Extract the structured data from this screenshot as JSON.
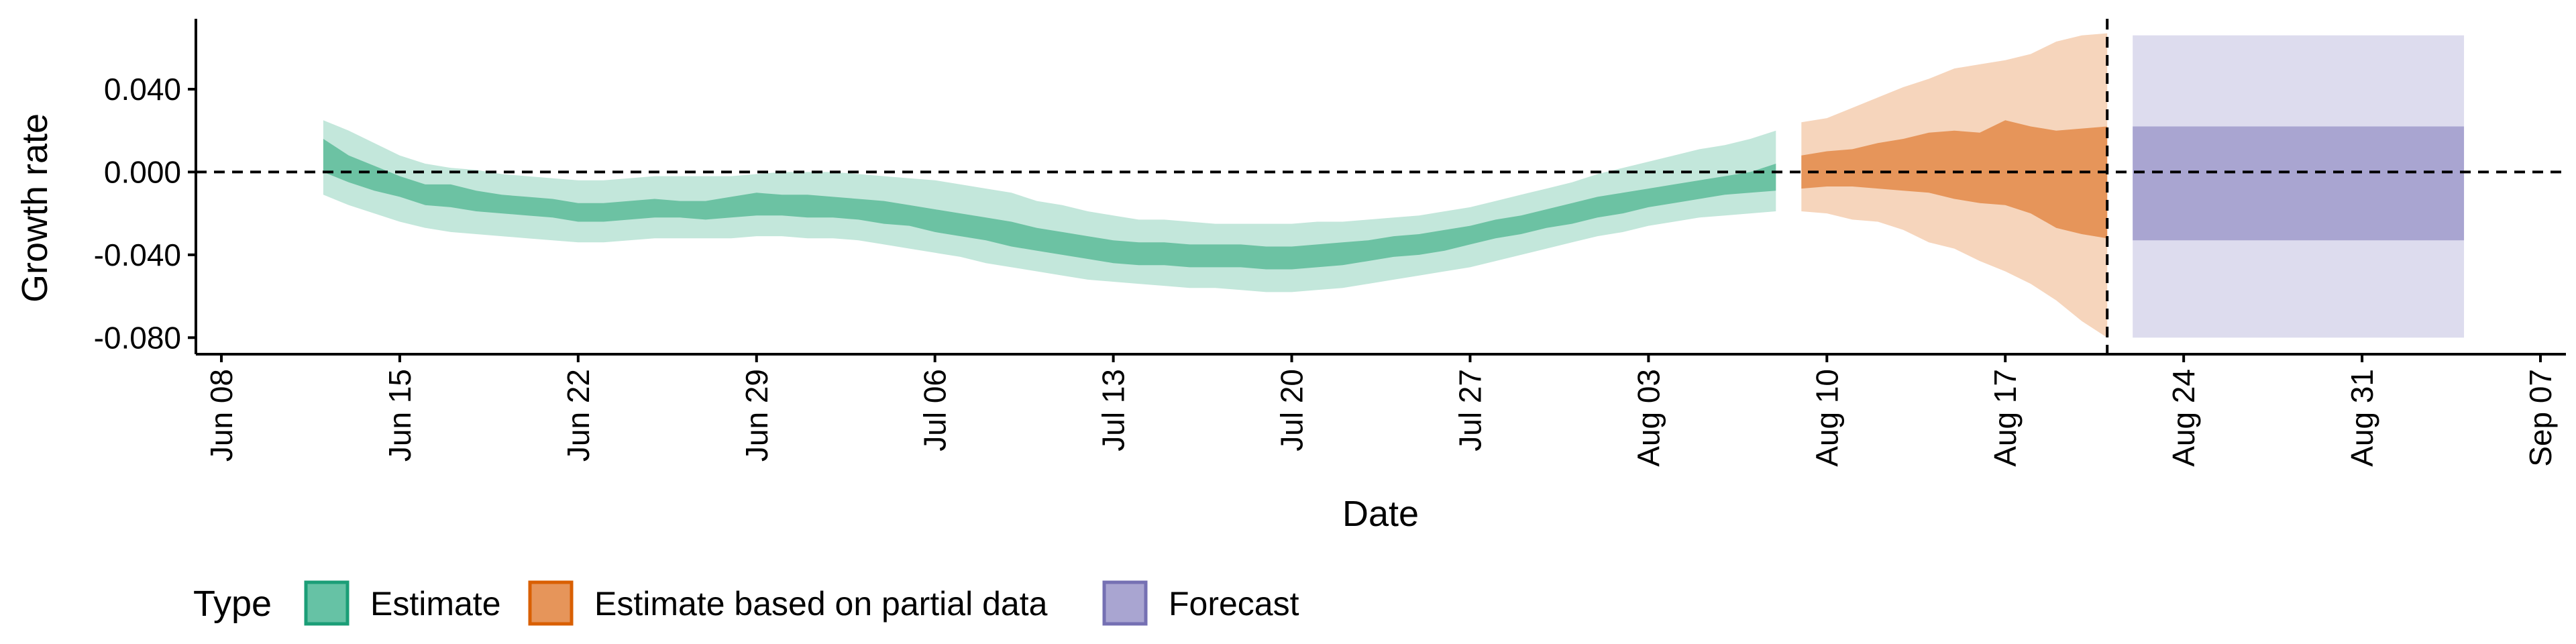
{
  "chart_data": {
    "type": "area",
    "xlabel": "Date",
    "ylabel": "Growth rate",
    "x_range": [
      "2021-06-07",
      "2021-09-08"
    ],
    "ylim": [
      -0.088,
      0.074
    ],
    "x_ticks": [
      {
        "date": "2021-06-08",
        "label": "Jun 08"
      },
      {
        "date": "2021-06-15",
        "label": "Jun 15"
      },
      {
        "date": "2021-06-22",
        "label": "Jun 22"
      },
      {
        "date": "2021-06-29",
        "label": "Jun 29"
      },
      {
        "date": "2021-07-06",
        "label": "Jul 06"
      },
      {
        "date": "2021-07-13",
        "label": "Jul 13"
      },
      {
        "date": "2021-07-20",
        "label": "Jul 20"
      },
      {
        "date": "2021-07-27",
        "label": "Jul 27"
      },
      {
        "date": "2021-08-03",
        "label": "Aug 03"
      },
      {
        "date": "2021-08-10",
        "label": "Aug 10"
      },
      {
        "date": "2021-08-17",
        "label": "Aug 17"
      },
      {
        "date": "2021-08-24",
        "label": "Aug 24"
      },
      {
        "date": "2021-08-31",
        "label": "Aug 31"
      },
      {
        "date": "2021-09-07",
        "label": "Sep 07"
      }
    ],
    "y_ticks": [
      {
        "value": 0.04,
        "label": "0.040"
      },
      {
        "value": 0.0,
        "label": "0.000"
      },
      {
        "value": -0.04,
        "label": "-0.040"
      },
      {
        "value": -0.08,
        "label": "-0.080"
      }
    ],
    "reference_lines": {
      "horizontal_y": 0.0,
      "vertical_date": "2021-08-21",
      "style": "dashed"
    },
    "grid": false,
    "legend": {
      "title": "Type",
      "placement": "bottom",
      "entries": [
        {
          "label": "Estimate",
          "color": "#66c2a5"
        },
        {
          "label": "Estimate based on partial data",
          "color": "#e6955a"
        },
        {
          "label": "Forecast",
          "color": "#a9a5d1"
        }
      ]
    },
    "colors": {
      "estimate_dark": "#6cc2a3",
      "estimate_light": "#c3e7db",
      "partial_dark": "#e6955a",
      "partial_light": "#f6d5bc",
      "forecast_dark": "#a9a5d1",
      "forecast_light": "#dddcee",
      "estimate_border": "#1b9e77",
      "partial_border": "#d95f02",
      "forecast_border": "#7570b3"
    },
    "series": [
      {
        "name": "Estimate",
        "dates": [
          "2021-06-12",
          "2021-06-13",
          "2021-06-14",
          "2021-06-15",
          "2021-06-16",
          "2021-06-17",
          "2021-06-18",
          "2021-06-19",
          "2021-06-20",
          "2021-06-21",
          "2021-06-22",
          "2021-06-23",
          "2021-06-24",
          "2021-06-25",
          "2021-06-26",
          "2021-06-27",
          "2021-06-28",
          "2021-06-29",
          "2021-06-30",
          "2021-07-01",
          "2021-07-02",
          "2021-07-03",
          "2021-07-04",
          "2021-07-05",
          "2021-07-06",
          "2021-07-07",
          "2021-07-08",
          "2021-07-09",
          "2021-07-10",
          "2021-07-11",
          "2021-07-12",
          "2021-07-13",
          "2021-07-14",
          "2021-07-15",
          "2021-07-16",
          "2021-07-17",
          "2021-07-18",
          "2021-07-19",
          "2021-07-20",
          "2021-07-21",
          "2021-07-22",
          "2021-07-23",
          "2021-07-24",
          "2021-07-25",
          "2021-07-26",
          "2021-07-27",
          "2021-07-28",
          "2021-07-29",
          "2021-07-30",
          "2021-07-31",
          "2021-08-01",
          "2021-08-02",
          "2021-08-03",
          "2021-08-04",
          "2021-08-05",
          "2021-08-06",
          "2021-08-07",
          "2021-08-08"
        ],
        "outer_upper": [
          0.025,
          0.02,
          0.014,
          0.008,
          0.004,
          0.002,
          0.001,
          -0.001,
          -0.002,
          -0.003,
          -0.004,
          -0.004,
          -0.003,
          -0.002,
          -0.002,
          -0.002,
          -0.002,
          -0.001,
          0.0,
          0.0,
          0.0,
          -0.001,
          -0.002,
          -0.003,
          -0.004,
          -0.006,
          -0.008,
          -0.01,
          -0.014,
          -0.016,
          -0.019,
          -0.021,
          -0.023,
          -0.023,
          -0.024,
          -0.025,
          -0.025,
          -0.025,
          -0.025,
          -0.024,
          -0.024,
          -0.023,
          -0.022,
          -0.021,
          -0.019,
          -0.017,
          -0.014,
          -0.011,
          -0.008,
          -0.005,
          -0.001,
          0.002,
          0.005,
          0.008,
          0.011,
          0.013,
          0.016,
          0.02
        ],
        "inner_upper": [
          0.016,
          0.008,
          0.003,
          -0.002,
          -0.006,
          -0.006,
          -0.009,
          -0.011,
          -0.012,
          -0.013,
          -0.015,
          -0.015,
          -0.014,
          -0.013,
          -0.014,
          -0.014,
          -0.012,
          -0.01,
          -0.011,
          -0.011,
          -0.012,
          -0.013,
          -0.014,
          -0.016,
          -0.018,
          -0.02,
          -0.022,
          -0.024,
          -0.027,
          -0.029,
          -0.031,
          -0.033,
          -0.034,
          -0.034,
          -0.035,
          -0.035,
          -0.035,
          -0.036,
          -0.036,
          -0.035,
          -0.034,
          -0.033,
          -0.031,
          -0.03,
          -0.028,
          -0.026,
          -0.023,
          -0.021,
          -0.018,
          -0.015,
          -0.012,
          -0.01,
          -0.008,
          -0.006,
          -0.004,
          -0.002,
          0.0,
          0.004
        ],
        "inner_lower": [
          0.0,
          -0.005,
          -0.009,
          -0.012,
          -0.016,
          -0.017,
          -0.019,
          -0.02,
          -0.021,
          -0.022,
          -0.024,
          -0.024,
          -0.023,
          -0.022,
          -0.022,
          -0.023,
          -0.022,
          -0.021,
          -0.021,
          -0.022,
          -0.022,
          -0.023,
          -0.025,
          -0.026,
          -0.029,
          -0.031,
          -0.033,
          -0.036,
          -0.038,
          -0.04,
          -0.042,
          -0.044,
          -0.045,
          -0.045,
          -0.046,
          -0.046,
          -0.046,
          -0.047,
          -0.047,
          -0.046,
          -0.045,
          -0.043,
          -0.041,
          -0.04,
          -0.038,
          -0.035,
          -0.032,
          -0.03,
          -0.027,
          -0.025,
          -0.022,
          -0.02,
          -0.017,
          -0.015,
          -0.013,
          -0.011,
          -0.01,
          -0.009
        ],
        "outer_lower": [
          -0.011,
          -0.016,
          -0.02,
          -0.024,
          -0.027,
          -0.029,
          -0.03,
          -0.031,
          -0.032,
          -0.033,
          -0.034,
          -0.034,
          -0.033,
          -0.032,
          -0.032,
          -0.032,
          -0.032,
          -0.031,
          -0.031,
          -0.032,
          -0.032,
          -0.033,
          -0.035,
          -0.037,
          -0.039,
          -0.041,
          -0.044,
          -0.046,
          -0.048,
          -0.05,
          -0.052,
          -0.053,
          -0.054,
          -0.055,
          -0.056,
          -0.056,
          -0.057,
          -0.058,
          -0.058,
          -0.057,
          -0.056,
          -0.054,
          -0.052,
          -0.05,
          -0.048,
          -0.046,
          -0.043,
          -0.04,
          -0.037,
          -0.034,
          -0.031,
          -0.029,
          -0.026,
          -0.024,
          -0.022,
          -0.021,
          -0.02,
          -0.019
        ]
      },
      {
        "name": "Estimate based on partial data",
        "dates": [
          "2021-08-09",
          "2021-08-10",
          "2021-08-11",
          "2021-08-12",
          "2021-08-13",
          "2021-08-14",
          "2021-08-15",
          "2021-08-16",
          "2021-08-17",
          "2021-08-18",
          "2021-08-19",
          "2021-08-20",
          "2021-08-21"
        ],
        "outer_upper": [
          0.024,
          0.026,
          0.031,
          0.036,
          0.041,
          0.045,
          0.05,
          0.052,
          0.054,
          0.057,
          0.063,
          0.066,
          0.067
        ],
        "inner_upper": [
          0.008,
          0.01,
          0.011,
          0.014,
          0.016,
          0.019,
          0.02,
          0.019,
          0.025,
          0.022,
          0.02,
          0.021,
          0.022
        ],
        "inner_lower": [
          -0.008,
          -0.007,
          -0.007,
          -0.008,
          -0.009,
          -0.01,
          -0.013,
          -0.015,
          -0.016,
          -0.02,
          -0.027,
          -0.03,
          -0.032
        ],
        "outer_lower": [
          -0.019,
          -0.02,
          -0.023,
          -0.024,
          -0.028,
          -0.034,
          -0.037,
          -0.043,
          -0.048,
          -0.054,
          -0.062,
          -0.072,
          -0.08
        ]
      },
      {
        "name": "Forecast",
        "date_range": [
          "2021-08-22",
          "2021-09-04"
        ],
        "outer_upper": 0.066,
        "inner_upper": 0.022,
        "inner_lower": -0.033,
        "outer_lower": -0.08
      }
    ]
  }
}
